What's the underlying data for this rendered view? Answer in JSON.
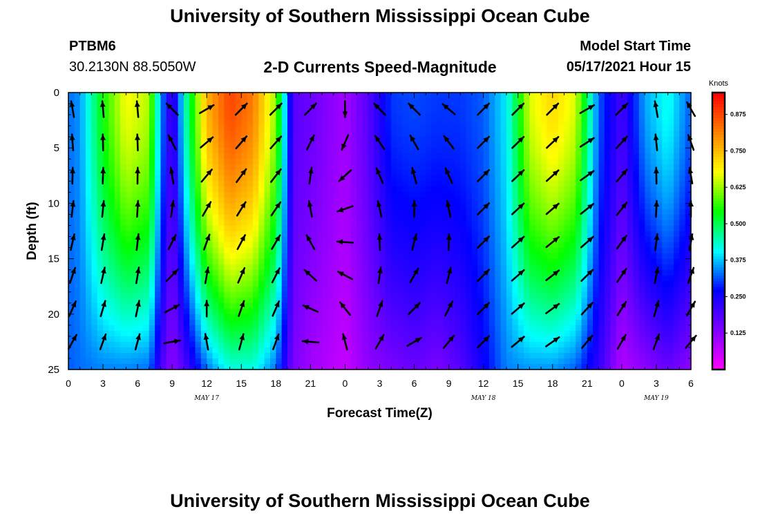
{
  "page": {
    "title_top": "University of Southern Mississippi Ocean Cube",
    "title_bottom": "University of Southern Mississippi Ocean Cube",
    "station_id": "PTBM6",
    "station_coords": "30.2130N  88.5050W",
    "plot_subtitle": "2-D Currents Speed-Magnitude",
    "model_start_label": "Model Start Time",
    "model_start_value": "05/17/2021 Hour 15"
  },
  "chart_data": {
    "type": "heatmap",
    "title": "2-D Currents Speed-Magnitude",
    "xlabel": "Forecast Time(Z)",
    "ylabel": "Depth (ft)",
    "x_range_hours": [
      0,
      54
    ],
    "ylim": [
      0,
      25
    ],
    "y_ticks": [
      0,
      5,
      10,
      15,
      20,
      25
    ],
    "x_tick_hours": [
      0,
      3,
      6,
      9,
      12,
      15,
      18,
      21,
      24,
      27,
      30,
      33,
      36,
      39,
      42,
      45,
      48,
      51,
      54
    ],
    "x_tick_labels": [
      "0",
      "3",
      "6",
      "9",
      "12",
      "15",
      "18",
      "21",
      "0",
      "3",
      "6",
      "9",
      "12",
      "15",
      "18",
      "21",
      "0",
      "3",
      "6"
    ],
    "date_labels": [
      {
        "hour": 12,
        "text": "MAY 17"
      },
      {
        "hour": 36,
        "text": "MAY 18"
      },
      {
        "hour": 51,
        "text": "MAY 19"
      }
    ],
    "colorbar": {
      "units": "Knots",
      "range": [
        0.0,
        0.95
      ],
      "tick_values": [
        0.125,
        0.25,
        0.375,
        0.5,
        0.625,
        0.75,
        0.875
      ],
      "tick_labels": [
        "0.125",
        "0.250",
        "0.375",
        "0.500",
        "0.625",
        "0.750",
        "0.875"
      ],
      "colors": [
        "#ff00ff",
        "#8000ff",
        "#0000ff",
        "#00ffff",
        "#00ff00",
        "#ffff00",
        "#ff8000",
        "#ff0000"
      ]
    },
    "speed_profile_hours": [
      0,
      1,
      3,
      5,
      7,
      8,
      9,
      10,
      12,
      14,
      16,
      18,
      19.5,
      21,
      24,
      26,
      28,
      30,
      32,
      34,
      36,
      38,
      40,
      42,
      44,
      46,
      48,
      50,
      52,
      54
    ],
    "speed_surface_knots": [
      0.33,
      0.35,
      0.55,
      0.68,
      0.64,
      0.36,
      0.18,
      0.42,
      0.76,
      0.88,
      0.82,
      0.62,
      0.18,
      0.16,
      0.1,
      0.18,
      0.3,
      0.31,
      0.3,
      0.3,
      0.32,
      0.4,
      0.66,
      0.72,
      0.66,
      0.32,
      0.2,
      0.36,
      0.42,
      0.32
    ],
    "speed_bottom_knots": [
      0.32,
      0.33,
      0.34,
      0.34,
      0.33,
      0.2,
      0.12,
      0.18,
      0.33,
      0.42,
      0.42,
      0.33,
      0.14,
      0.1,
      0.06,
      0.12,
      0.14,
      0.16,
      0.14,
      0.18,
      0.26,
      0.34,
      0.35,
      0.35,
      0.32,
      0.22,
      0.08,
      0.12,
      0.16,
      0.12
    ],
    "arrow_hours": [
      0,
      3,
      6,
      9,
      12,
      15,
      18,
      21,
      24,
      27,
      30,
      33,
      36,
      39,
      42,
      45,
      48,
      51,
      54
    ],
    "arrow_depths_ft": [
      1.5,
      4.5,
      7.5,
      10.5,
      13.5,
      16.5,
      19.5,
      22.5
    ],
    "arrow_bearing_surface_deg": [
      350,
      355,
      355,
      315,
      60,
      45,
      45,
      45,
      180,
      315,
      315,
      310,
      45,
      45,
      45,
      60,
      45,
      350,
      330
    ],
    "arrow_bearing_bottom_deg": [
      30,
      20,
      15,
      80,
      350,
      15,
      20,
      275,
      345,
      30,
      60,
      40,
      45,
      50,
      55,
      40,
      30,
      20,
      40
    ]
  }
}
